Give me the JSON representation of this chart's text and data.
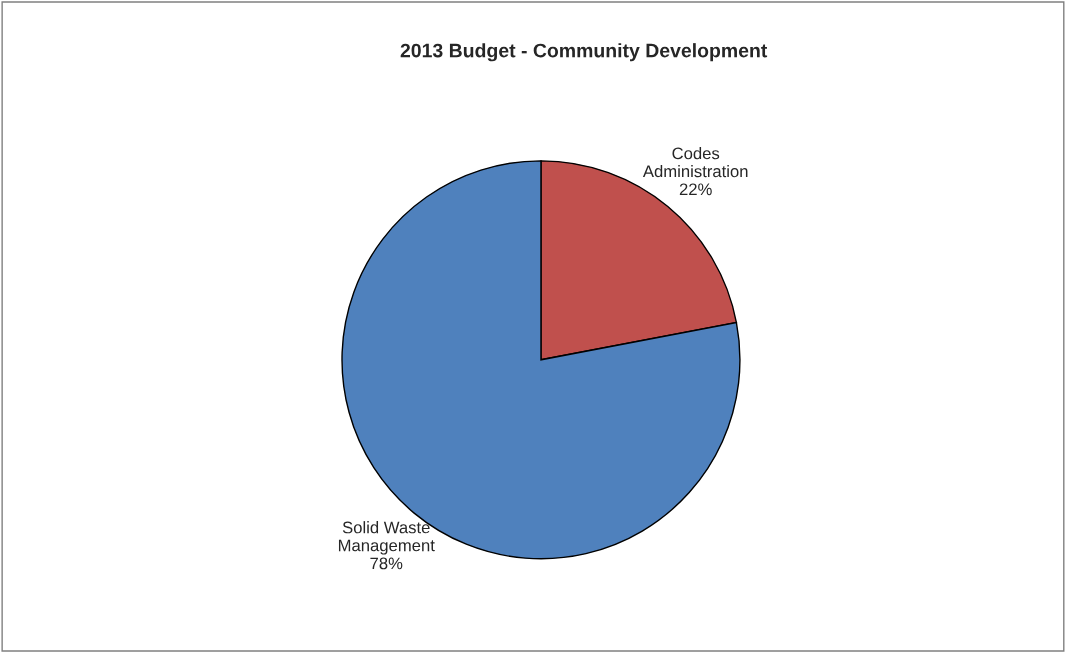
{
  "chart_data": {
    "type": "pie",
    "title": "2013 Budget - Community Development",
    "categories": [
      "Codes Administration",
      "Solid Waste Management"
    ],
    "values": [
      22,
      78
    ],
    "value_labels": [
      "22%",
      "78%"
    ],
    "colors": [
      "#c0504d",
      "#4f81bd"
    ],
    "legend": false
  }
}
